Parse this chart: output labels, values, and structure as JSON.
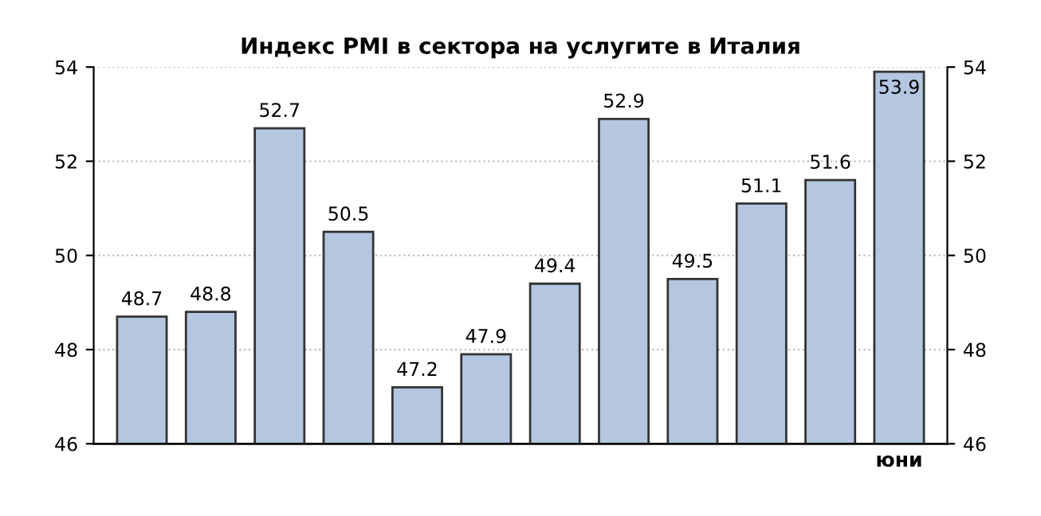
{
  "chart_data": {
    "type": "bar",
    "title": "Индекс PMI в сектора на услугите в Италия",
    "categories": [
      null,
      null,
      null,
      null,
      null,
      null,
      null,
      null,
      null,
      null,
      null,
      "юни"
    ],
    "values": [
      48.7,
      48.8,
      52.7,
      50.5,
      47.2,
      47.9,
      49.4,
      52.9,
      49.5,
      51.1,
      51.6,
      53.9
    ],
    "color": "#b4c6e0",
    "ylim": [
      46,
      54
    ],
    "yticks": [
      46,
      48,
      50,
      52,
      54
    ],
    "y2lim": [
      46,
      54
    ],
    "y2ticks": [
      46,
      48,
      50,
      52,
      54
    ],
    "grid": "y",
    "data_labels": true
  }
}
